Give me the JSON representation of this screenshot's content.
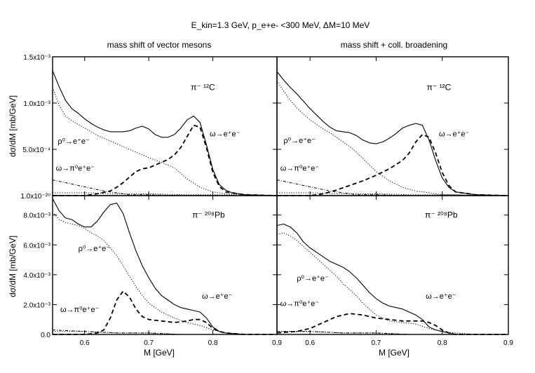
{
  "figure": {
    "title": "E_kin=1.3 GeV, p_e+e- <300 MeV, ΔM=10 MeV",
    "col_titles": [
      "mass shift of vector mesons",
      "mass shift + coll. broadening"
    ],
    "ylabel": "dσ/dM [mb/GeV]",
    "xlabel": "M [GeV]"
  },
  "chart_data": [
    {
      "type": "line",
      "panel": "top-left",
      "reaction_label": "π⁻ ¹²C",
      "xlim": [
        0.55,
        0.9
      ],
      "ylim": [
        0,
        0.0015
      ],
      "ytick_labels": [
        "1.0x10⁻²⁰",
        "5.0x10⁻⁴",
        "1.0x10⁻³",
        "1.5x10⁻³"
      ],
      "yticks": [
        0,
        0.0005,
        0.001,
        0.0015
      ],
      "xticks": [
        0.6,
        0.7,
        0.8
      ],
      "xtick_labels": [],
      "annotations": [
        {
          "text": "ρ⁰→e⁺e⁻",
          "x": 0.558,
          "y": 0.00056
        },
        {
          "text": "ω→π⁰e⁺e⁻",
          "x": 0.555,
          "y": 0.00027
        },
        {
          "text": "ω→e⁺e⁻",
          "x": 0.795,
          "y": 0.00064
        }
      ],
      "series": [
        {
          "style": "solid",
          "x": [
            0.55,
            0.56,
            0.57,
            0.58,
            0.59,
            0.6,
            0.61,
            0.62,
            0.63,
            0.64,
            0.65,
            0.66,
            0.67,
            0.68,
            0.69,
            0.7,
            0.71,
            0.72,
            0.73,
            0.74,
            0.75,
            0.76,
            0.77,
            0.78,
            0.79,
            0.8,
            0.81,
            0.82,
            0.83,
            0.85,
            0.9
          ],
          "y": [
            0.00135,
            0.00118,
            0.00103,
            0.00094,
            0.00089,
            0.00083,
            0.00078,
            0.00074,
            0.00071,
            0.00069,
            0.00069,
            0.00069,
            0.0007,
            0.00073,
            0.00075,
            0.00072,
            0.00066,
            0.00063,
            0.00063,
            0.00066,
            0.00073,
            0.00082,
            0.00086,
            0.00079,
            0.00055,
            0.00028,
            0.00012,
            6e-05,
            3e-05,
            1e-05,
            0.0
          ]
        },
        {
          "style": "dotted",
          "x": [
            0.55,
            0.56,
            0.57,
            0.58,
            0.59,
            0.6,
            0.61,
            0.62,
            0.63,
            0.64,
            0.65,
            0.66,
            0.67,
            0.68,
            0.69,
            0.7,
            0.72,
            0.74,
            0.76,
            0.78,
            0.8,
            0.82,
            0.85,
            0.9
          ],
          "y": [
            0.00117,
            0.00098,
            0.00086,
            0.00081,
            0.00077,
            0.00073,
            0.00069,
            0.00065,
            0.00062,
            0.00059,
            0.00056,
            0.00053,
            0.0005,
            0.00047,
            0.00044,
            0.00041,
            0.00036,
            0.0003,
            0.00018,
            9e-05,
            4e-05,
            2e-05,
            1e-05,
            0.0
          ]
        },
        {
          "style": "dashed",
          "x": [
            0.55,
            0.6,
            0.62,
            0.64,
            0.65,
            0.66,
            0.67,
            0.68,
            0.69,
            0.7,
            0.71,
            0.72,
            0.73,
            0.74,
            0.75,
            0.76,
            0.77,
            0.78,
            0.79,
            0.8,
            0.81,
            0.82,
            0.85,
            0.9
          ],
          "y": [
            0.0,
            0.0,
            2e-05,
            5e-05,
            9e-05,
            0.00014,
            0.0002,
            0.00026,
            0.00029,
            0.0003,
            0.00033,
            0.00036,
            0.00039,
            0.00044,
            0.00052,
            0.00064,
            0.00076,
            0.00074,
            0.00052,
            0.00025,
            0.0001,
            4e-05,
            1e-05,
            0.0
          ]
        },
        {
          "style": "dashdot",
          "x": [
            0.55,
            0.57,
            0.59,
            0.61,
            0.63,
            0.65,
            0.67,
            0.7,
            0.75,
            0.8,
            0.9
          ],
          "y": [
            0.00017,
            0.00014,
            0.00011,
            8e-05,
            5e-05,
            3e-05,
            1e-05,
            1e-05,
            0.0,
            0.0,
            0.0
          ]
        },
        {
          "style": "dotted",
          "x": [
            0.55,
            0.6,
            0.65,
            0.7,
            0.75,
            0.8,
            0.9
          ],
          "y": [
            3e-05,
            3e-05,
            2e-05,
            2e-05,
            1e-05,
            1e-05,
            0.0
          ]
        }
      ]
    },
    {
      "type": "line",
      "panel": "top-right",
      "reaction_label": "π⁻ ¹²C",
      "xlim": [
        0.55,
        0.9
      ],
      "ylim": [
        0,
        0.0015
      ],
      "yticks": [
        0,
        0.0005,
        0.001,
        0.0015
      ],
      "ytick_labels": [],
      "xticks": [
        0.6,
        0.7,
        0.8
      ],
      "xtick_labels": [],
      "annotations": [
        {
          "text": "ρ⁰→e⁺e⁻",
          "x": 0.56,
          "y": 0.00057
        },
        {
          "text": "ω→π⁰e⁺e⁻",
          "x": 0.555,
          "y": 0.00027
        },
        {
          "text": "ω→e⁺e⁻",
          "x": 0.795,
          "y": 0.00064
        }
      ],
      "series": [
        {
          "style": "solid",
          "x": [
            0.55,
            0.56,
            0.57,
            0.58,
            0.59,
            0.6,
            0.61,
            0.62,
            0.63,
            0.64,
            0.65,
            0.66,
            0.67,
            0.68,
            0.69,
            0.7,
            0.71,
            0.72,
            0.73,
            0.74,
            0.75,
            0.76,
            0.77,
            0.78,
            0.79,
            0.8,
            0.81,
            0.82,
            0.85,
            0.9
          ],
          "y": [
            0.00134,
            0.00125,
            0.00117,
            0.0011,
            0.00102,
            0.00094,
            0.00087,
            0.0008,
            0.00074,
            0.0007,
            0.00069,
            0.00068,
            0.00065,
            0.0006,
            0.00057,
            0.00056,
            0.00058,
            0.00062,
            0.00067,
            0.00073,
            0.00076,
            0.00078,
            0.00076,
            0.0006,
            0.00038,
            0.00019,
            9e-05,
            4e-05,
            1e-05,
            0.0
          ]
        },
        {
          "style": "dotted",
          "x": [
            0.55,
            0.56,
            0.57,
            0.58,
            0.59,
            0.6,
            0.61,
            0.62,
            0.63,
            0.64,
            0.65,
            0.66,
            0.67,
            0.68,
            0.69,
            0.7,
            0.72,
            0.74,
            0.76,
            0.78,
            0.8,
            0.82,
            0.85,
            0.9
          ],
          "y": [
            0.00124,
            0.00113,
            0.00103,
            0.00095,
            0.00088,
            0.00082,
            0.00077,
            0.00072,
            0.00068,
            0.00063,
            0.00058,
            0.00053,
            0.00047,
            0.0004,
            0.00033,
            0.00026,
            0.00016,
            9e-05,
            5e-05,
            3e-05,
            1e-05,
            1e-05,
            0.0,
            0.0
          ]
        },
        {
          "style": "dashed",
          "x": [
            0.55,
            0.6,
            0.62,
            0.64,
            0.66,
            0.68,
            0.7,
            0.72,
            0.74,
            0.75,
            0.76,
            0.77,
            0.78,
            0.79,
            0.8,
            0.81,
            0.82,
            0.85,
            0.9
          ],
          "y": [
            0.0,
            0.0,
            2e-05,
            6e-05,
            0.00011,
            0.00016,
            0.00022,
            0.00029,
            0.00038,
            0.00046,
            0.00058,
            0.00066,
            0.00063,
            0.00046,
            0.00025,
            0.00011,
            4e-05,
            1e-05,
            0.0
          ]
        },
        {
          "style": "dashdot",
          "x": [
            0.55,
            0.57,
            0.59,
            0.61,
            0.63,
            0.65,
            0.67,
            0.7,
            0.75,
            0.8,
            0.9
          ],
          "y": [
            0.00017,
            0.00014,
            0.00011,
            8e-05,
            5e-05,
            3e-05,
            1e-05,
            1e-05,
            0.0,
            0.0,
            0.0
          ]
        },
        {
          "style": "dotted",
          "x": [
            0.55,
            0.6,
            0.65,
            0.7,
            0.75,
            0.8,
            0.9
          ],
          "y": [
            3e-05,
            3e-05,
            2e-05,
            2e-05,
            1e-05,
            1e-05,
            0.0
          ]
        }
      ]
    },
    {
      "type": "line",
      "panel": "bottom-left",
      "reaction_label": "π⁻ ²⁰⁸Pb",
      "xlim": [
        0.55,
        0.9
      ],
      "ylim": [
        0,
        0.0093
      ],
      "yticks": [
        0,
        0.002,
        0.004,
        0.006,
        0.008
      ],
      "ytick_labels": [
        "0.0",
        "2.0x10⁻³",
        "4.0x10⁻³",
        "6.0x10⁻³",
        "8.0x10⁻³"
      ],
      "xticks": [
        0.6,
        0.7,
        0.8,
        0.9
      ],
      "xtick_labels": [
        "0.6",
        "0.7",
        "0.8",
        "0.9"
      ],
      "annotations": [
        {
          "text": "ρ⁰→e⁺e⁻",
          "x": 0.59,
          "y": 0.0056
        },
        {
          "text": "ω→π⁰e⁺e⁻",
          "x": 0.562,
          "y": 0.0015
        },
        {
          "text": "ω→e⁺e⁻",
          "x": 0.783,
          "y": 0.0024
        }
      ],
      "series": [
        {
          "style": "solid",
          "x": [
            0.55,
            0.56,
            0.57,
            0.58,
            0.59,
            0.6,
            0.61,
            0.62,
            0.63,
            0.64,
            0.65,
            0.66,
            0.67,
            0.68,
            0.69,
            0.7,
            0.71,
            0.72,
            0.73,
            0.74,
            0.75,
            0.76,
            0.77,
            0.78,
            0.79,
            0.8,
            0.81,
            0.82,
            0.85,
            0.9
          ],
          "y": [
            0.0091,
            0.0083,
            0.0078,
            0.0077,
            0.0074,
            0.0072,
            0.0072,
            0.0076,
            0.0082,
            0.0087,
            0.0088,
            0.0081,
            0.0068,
            0.0056,
            0.0046,
            0.0038,
            0.0031,
            0.0026,
            0.0023,
            0.002,
            0.0018,
            0.0017,
            0.0016,
            0.0015,
            0.0011,
            0.0005,
            0.0002,
            0.0001,
            0.0,
            0.0
          ]
        },
        {
          "style": "dotted",
          "x": [
            0.55,
            0.56,
            0.57,
            0.58,
            0.59,
            0.6,
            0.61,
            0.62,
            0.63,
            0.64,
            0.65,
            0.66,
            0.67,
            0.68,
            0.69,
            0.7,
            0.72,
            0.74,
            0.76,
            0.78,
            0.8,
            0.82,
            0.85,
            0.9
          ],
          "y": [
            0.0082,
            0.0077,
            0.0075,
            0.0074,
            0.0073,
            0.0071,
            0.0068,
            0.0066,
            0.0063,
            0.0058,
            0.0053,
            0.0046,
            0.0039,
            0.0032,
            0.0026,
            0.0021,
            0.0015,
            0.0011,
            0.0008,
            0.0006,
            0.0003,
            0.0001,
            0.0,
            0.0
          ]
        },
        {
          "style": "dashed",
          "x": [
            0.55,
            0.6,
            0.62,
            0.63,
            0.64,
            0.65,
            0.66,
            0.67,
            0.68,
            0.69,
            0.7,
            0.72,
            0.74,
            0.76,
            0.77,
            0.78,
            0.79,
            0.8,
            0.81,
            0.82,
            0.85,
            0.9
          ],
          "y": [
            0.0,
            0.0,
            0.0001,
            0.0003,
            0.0011,
            0.0023,
            0.0029,
            0.0025,
            0.0017,
            0.0012,
            0.001,
            0.0009,
            0.0008,
            0.0009,
            0.001,
            0.001,
            0.0008,
            0.0004,
            0.0002,
            0.0001,
            0.0,
            0.0
          ]
        },
        {
          "style": "dashdot",
          "x": [
            0.55,
            0.6,
            0.65,
            0.7,
            0.75,
            0.8,
            0.9
          ],
          "y": [
            0.0003,
            0.0002,
            0.0001,
            0.0001,
            0.0,
            0.0,
            0.0
          ]
        },
        {
          "style": "dotted",
          "x": [
            0.55,
            0.6,
            0.65,
            0.7,
            0.75,
            0.8,
            0.9
          ],
          "y": [
            0.0002,
            0.0002,
            0.0001,
            0.0001,
            0.0,
            0.0,
            0.0
          ]
        }
      ]
    },
    {
      "type": "line",
      "panel": "bottom-right",
      "reaction_label": "π⁻ ²⁰⁸Pb",
      "xlim": [
        0.55,
        0.9
      ],
      "ylim": [
        0,
        0.0093
      ],
      "yticks": [
        0,
        0.002,
        0.004,
        0.006,
        0.008
      ],
      "ytick_labels": [],
      "xticks": [
        0.6,
        0.7,
        0.8,
        0.9
      ],
      "xtick_labels": [
        "0.6",
        "0.7",
        "0.8",
        "0.9"
      ],
      "annotations": [
        {
          "text": "ρ⁰→e⁺e⁻",
          "x": 0.58,
          "y": 0.0036
        },
        {
          "text": "ω→π⁰e⁺e⁻",
          "x": 0.555,
          "y": 0.0019
        },
        {
          "text": "ω→e⁺e⁻",
          "x": 0.775,
          "y": 0.0024
        }
      ],
      "series": [
        {
          "style": "solid",
          "x": [
            0.55,
            0.56,
            0.57,
            0.58,
            0.59,
            0.6,
            0.61,
            0.62,
            0.63,
            0.64,
            0.65,
            0.66,
            0.67,
            0.68,
            0.69,
            0.7,
            0.71,
            0.72,
            0.73,
            0.74,
            0.75,
            0.76,
            0.77,
            0.78,
            0.79,
            0.8,
            0.81,
            0.82,
            0.85,
            0.9
          ],
          "y": [
            0.0073,
            0.0074,
            0.0072,
            0.0068,
            0.0062,
            0.0058,
            0.0055,
            0.0052,
            0.0049,
            0.0047,
            0.0045,
            0.0042,
            0.0038,
            0.0033,
            0.0028,
            0.0024,
            0.0021,
            0.0019,
            0.0018,
            0.0017,
            0.0015,
            0.0013,
            0.001,
            0.0005,
            0.0003,
            0.0002,
            0.0001,
            0.0,
            0.0,
            0.0
          ]
        },
        {
          "style": "dotted",
          "x": [
            0.55,
            0.56,
            0.57,
            0.58,
            0.59,
            0.6,
            0.61,
            0.62,
            0.63,
            0.64,
            0.65,
            0.66,
            0.67,
            0.68,
            0.69,
            0.7,
            0.72,
            0.74,
            0.76,
            0.78,
            0.8,
            0.82,
            0.85,
            0.9
          ],
          "y": [
            0.0067,
            0.0068,
            0.0066,
            0.0063,
            0.0059,
            0.0055,
            0.0051,
            0.0047,
            0.0043,
            0.0039,
            0.0034,
            0.003,
            0.0026,
            0.0021,
            0.0017,
            0.0013,
            0.0009,
            0.0008,
            0.0007,
            0.0004,
            0.0002,
            0.0001,
            0.0,
            0.0
          ]
        },
        {
          "style": "dashed",
          "x": [
            0.55,
            0.58,
            0.6,
            0.62,
            0.64,
            0.66,
            0.68,
            0.7,
            0.72,
            0.74,
            0.76,
            0.77,
            0.78,
            0.79,
            0.8,
            0.81,
            0.82,
            0.85,
            0.9
          ],
          "y": [
            0.0001,
            0.0002,
            0.0004,
            0.0008,
            0.0012,
            0.0014,
            0.0013,
            0.0011,
            0.001,
            0.0009,
            0.0009,
            0.0009,
            0.0008,
            0.0006,
            0.0003,
            0.0001,
            0.0,
            0.0,
            0.0
          ]
        },
        {
          "style": "dashdot",
          "x": [
            0.55,
            0.6,
            0.65,
            0.7,
            0.75,
            0.8,
            0.9
          ],
          "y": [
            0.0002,
            0.0002,
            0.0001,
            0.0001,
            0.0,
            0.0,
            0.0
          ]
        },
        {
          "style": "dotted",
          "x": [
            0.55,
            0.6,
            0.65,
            0.7,
            0.75,
            0.8,
            0.9
          ],
          "y": [
            0.0002,
            0.0002,
            0.0001,
            0.0001,
            0.0,
            0.0,
            0.0
          ]
        }
      ]
    }
  ]
}
